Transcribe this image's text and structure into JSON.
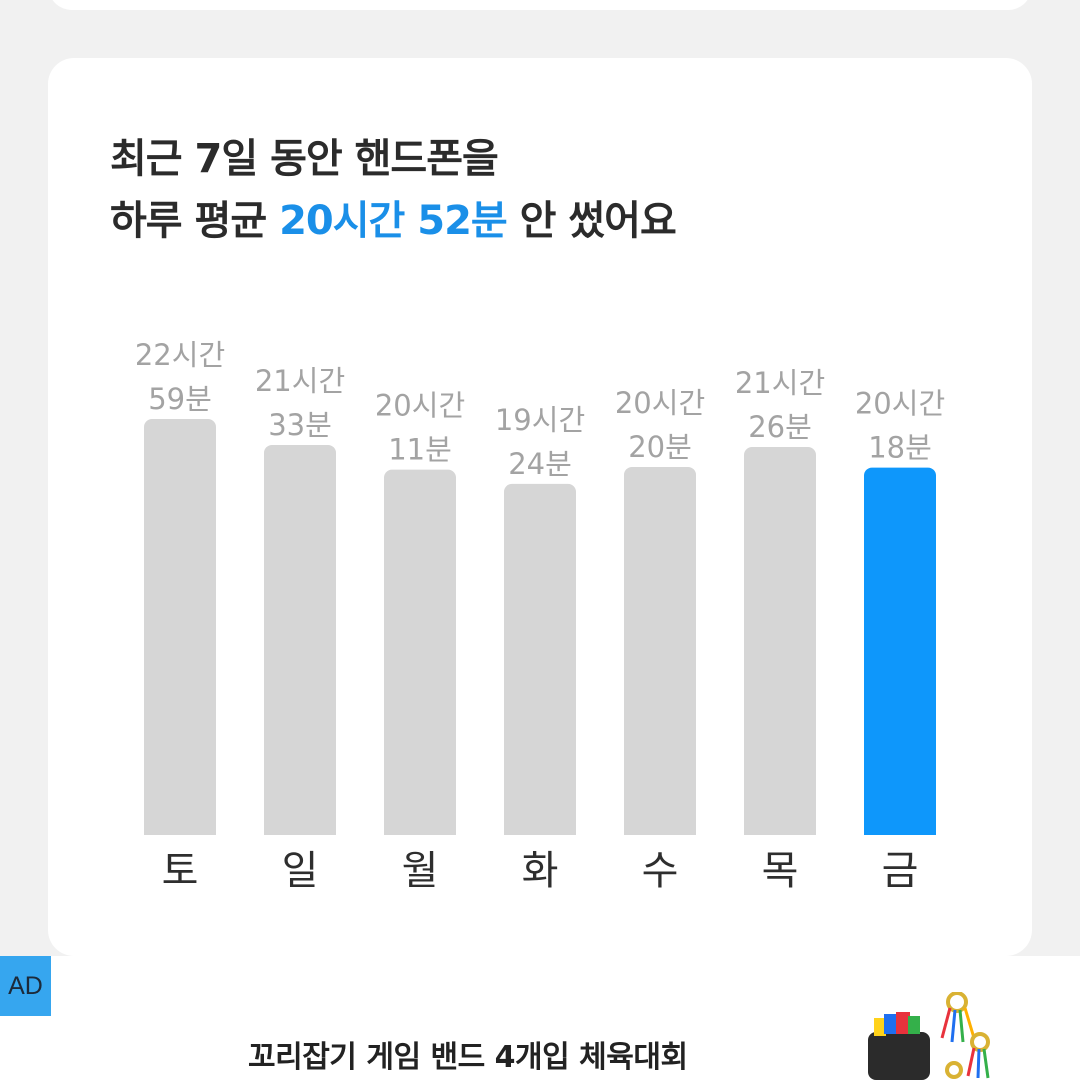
{
  "headline": {
    "line1": "최근 7일 동안 핸드폰을",
    "line2_prefix": "하루 평균 ",
    "line2_highlight": "20시간 52분",
    "line2_suffix": " 안 썼어요"
  },
  "colors": {
    "bar_default": "#d6d6d6",
    "bar_highlight": "#0e97fb",
    "highlight_text": "#1a8fe8"
  },
  "chart_data": {
    "type": "bar",
    "categories": [
      "토",
      "일",
      "월",
      "화",
      "수",
      "목",
      "금"
    ],
    "labels": [
      [
        "22시간",
        "59분"
      ],
      [
        "21시간",
        "33분"
      ],
      [
        "20시간",
        "11분"
      ],
      [
        "19시간",
        "24분"
      ],
      [
        "20시간",
        "20분"
      ],
      [
        "21시간",
        "26분"
      ],
      [
        "20시간",
        "18분"
      ]
    ],
    "values_minutes": [
      1379,
      1293,
      1211,
      1164,
      1220,
      1286,
      1218
    ],
    "highlight_index": 6
  },
  "ad": {
    "badge": "AD",
    "title": "꼬리잡기 게임 밴드 4개입 체육대회",
    "thumbnail_icon": "product-bag-ribbons-icon"
  }
}
